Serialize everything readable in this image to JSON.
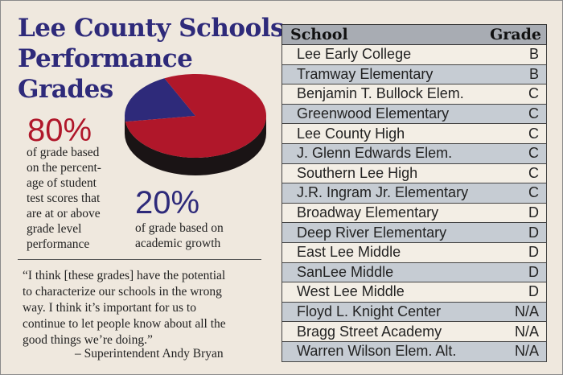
{
  "title": {
    "line1": "Lee County Schools",
    "line2": "Performance",
    "line3": "Grades"
  },
  "chart_data": {
    "type": "pie",
    "slices": [
      {
        "label": "80%",
        "value": 80,
        "color": "#b0172a"
      },
      {
        "label": "20%",
        "value": 20,
        "color": "#2e2a7a"
      }
    ]
  },
  "test_scores": {
    "percent": "80%",
    "desc_lines": [
      "of grade based",
      "on the percent-",
      "age of student",
      "test scores that",
      "are at or above",
      "grade level",
      "performance"
    ]
  },
  "growth": {
    "percent": "20%",
    "desc_lines": [
      "of grade based on",
      "academic growth"
    ]
  },
  "quote": {
    "lines": [
      "“I think [these grades] have the potential",
      "to characterize our schools in the wrong",
      "way. I think it’s important for us to",
      "continue to let people know about all the",
      "good things we’re doing.”"
    ],
    "attribution": "– Superintendent Andy Bryan"
  },
  "table": {
    "headers": {
      "school": "School",
      "grade": "Grade"
    },
    "rows": [
      {
        "school": "Lee Early College",
        "grade": "B"
      },
      {
        "school": "Tramway Elementary",
        "grade": "B"
      },
      {
        "school": "Benjamin T. Bullock Elem.",
        "grade": "C"
      },
      {
        "school": "Greenwood Elementary",
        "grade": "C"
      },
      {
        "school": "Lee County High",
        "grade": "C"
      },
      {
        "school": "J. Glenn Edwards Elem.",
        "grade": "C"
      },
      {
        "school": "Southern Lee High",
        "grade": "C"
      },
      {
        "school": "J.R. Ingram Jr. Elementary",
        "grade": "C"
      },
      {
        "school": "Broadway Elementary",
        "grade": "D"
      },
      {
        "school": "Deep River Elementary",
        "grade": "D"
      },
      {
        "school": "East Lee Middle",
        "grade": "D"
      },
      {
        "school": "SanLee Middle",
        "grade": "D"
      },
      {
        "school": "West Lee Middle",
        "grade": "D"
      },
      {
        "school": "Floyd L. Knight Center",
        "grade": "N/A"
      },
      {
        "school": "Bragg Street Academy",
        "grade": "N/A"
      },
      {
        "school": "Warren Wilson Elem. Alt.",
        "grade": "N/A"
      }
    ]
  }
}
